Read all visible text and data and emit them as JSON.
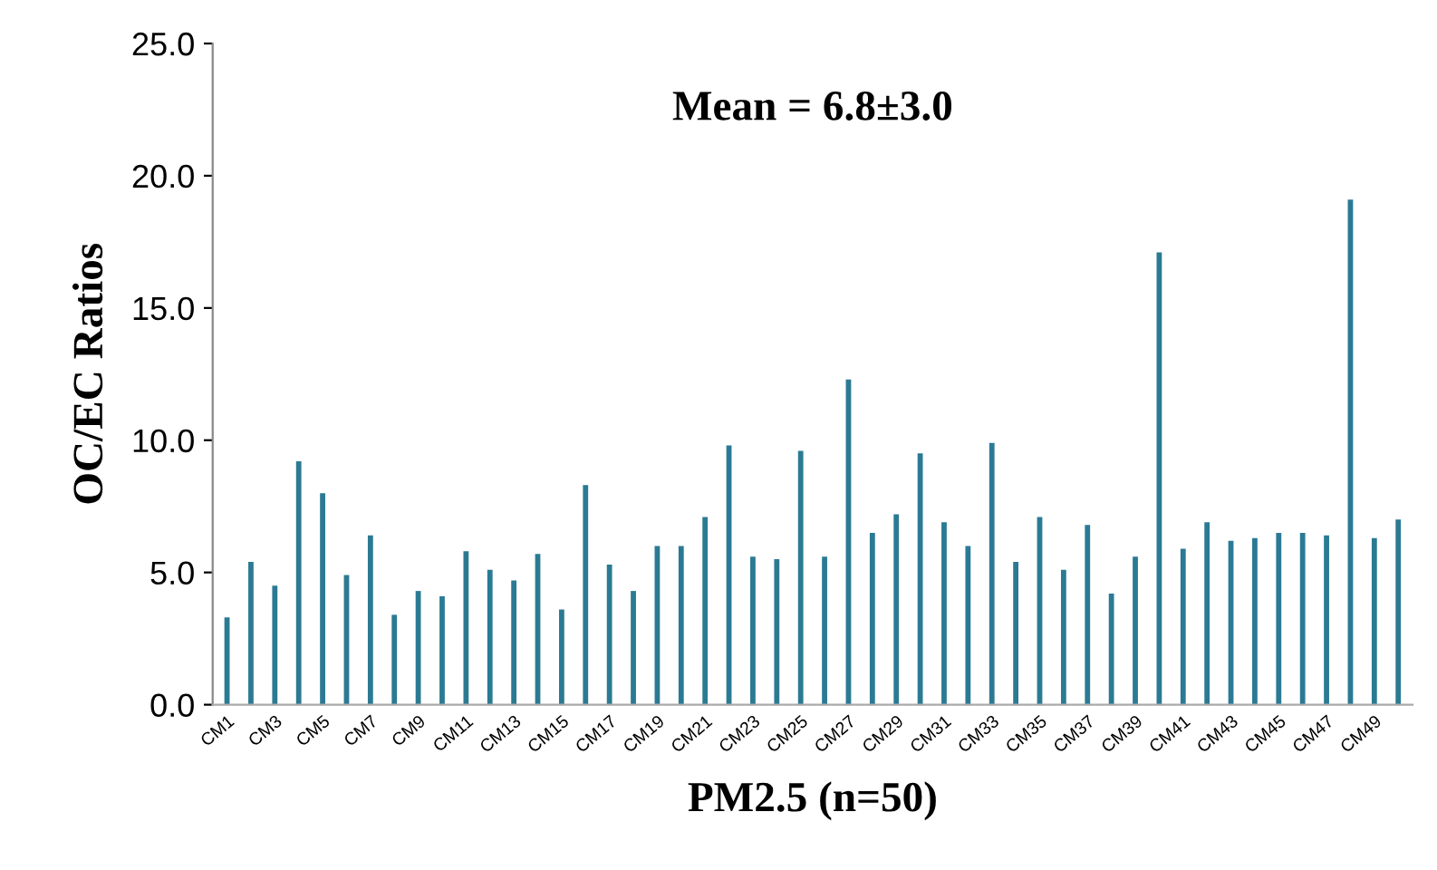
{
  "chart_data": {
    "type": "bar",
    "xlabel": "PM2.5 (n=50)",
    "ylabel": "OC/EC Ratios",
    "annotations": [
      "Mean = 6.8±3.0"
    ],
    "categories": [
      "CM1",
      null,
      "CM3",
      null,
      "CM5",
      null,
      "CM7",
      null,
      "CM9",
      null,
      "CM11",
      null,
      "CM13",
      null,
      "CM15",
      null,
      "CM17",
      null,
      "CM19",
      null,
      "CM21",
      null,
      "CM23",
      null,
      "CM25",
      null,
      "CM27",
      null,
      "CM29",
      null,
      "CM31",
      null,
      "CM33",
      null,
      "CM35",
      null,
      "CM37",
      null,
      "CM39",
      null,
      "CM41",
      null,
      "CM43",
      null,
      "CM45",
      null,
      "CM47",
      null,
      "CM49",
      null
    ],
    "values": [
      3.3,
      5.4,
      4.5,
      9.2,
      8.0,
      4.9,
      6.4,
      3.4,
      4.3,
      4.1,
      5.8,
      5.1,
      4.7,
      5.7,
      3.6,
      8.3,
      5.3,
      4.3,
      6.0,
      6.0,
      7.1,
      9.8,
      5.6,
      5.5,
      9.6,
      5.6,
      12.3,
      6.5,
      7.2,
      9.5,
      6.9,
      6.0,
      9.9,
      5.4,
      7.1,
      5.1,
      6.8,
      4.2,
      5.6,
      17.1,
      5.9,
      6.9,
      6.2,
      6.3,
      6.5,
      6.5,
      6.4,
      19.1,
      6.3,
      7.0
    ],
    "color": "#2b7a94",
    "ylim": [
      0,
      25
    ],
    "yticks": [
      {
        "value": 0,
        "label": "0.0"
      },
      {
        "value": 5,
        "label": "5.0"
      },
      {
        "value": 10,
        "label": "10.0"
      },
      {
        "value": 15,
        "label": "15.0"
      },
      {
        "value": 20,
        "label": "20.0"
      },
      {
        "value": 25,
        "label": "25.0"
      }
    ],
    "grid": false
  }
}
